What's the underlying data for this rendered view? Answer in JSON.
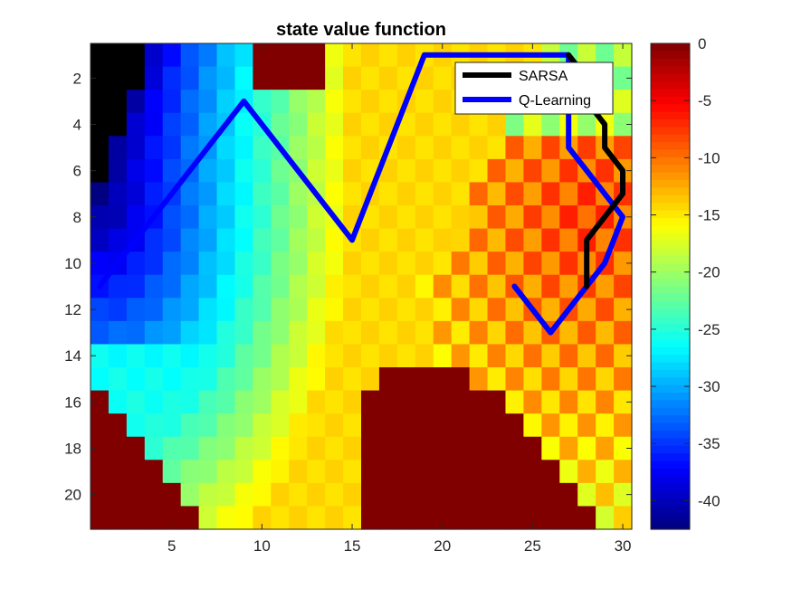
{
  "chart_data": {
    "type": "heatmap",
    "title": "state value function",
    "xlim": [
      0.5,
      30.5
    ],
    "ylim": [
      0.5,
      21.5
    ],
    "y_direction": "reverse",
    "xticks": [
      5,
      10,
      15,
      20,
      25,
      30
    ],
    "yticks": [
      2,
      4,
      6,
      8,
      10,
      12,
      14,
      16,
      18,
      20
    ],
    "colormap": "jet",
    "clim": [
      -42.5,
      0
    ],
    "colorbar_ticks": [
      0,
      -5,
      -10,
      -15,
      -20,
      -25,
      -30,
      -35,
      -40
    ],
    "legend_position": "top-right",
    "grid": false,
    "series": [
      {
        "name": "SARSA",
        "color": "#000000",
        "x": [
          28,
          28,
          29,
          30,
          30,
          29,
          29,
          28,
          28,
          27,
          27
        ],
        "y": [
          11,
          9,
          8,
          7,
          6,
          5,
          4,
          3,
          2,
          1,
          1
        ]
      },
      {
        "name": "Q-Learning",
        "color": "#0000ff",
        "x": [
          1,
          9,
          15,
          19,
          27,
          27,
          28,
          29,
          30,
          29,
          28,
          27,
          26,
          24
        ],
        "y": [
          11,
          3,
          9,
          1,
          1,
          5,
          6,
          7,
          8,
          10,
          11,
          12,
          13,
          11
        ]
      }
    ],
    "region_values": {
      "start_corner": -42,
      "fringe_level": -26,
      "obstacle": 0,
      "goal_region_base": -6
    }
  }
}
